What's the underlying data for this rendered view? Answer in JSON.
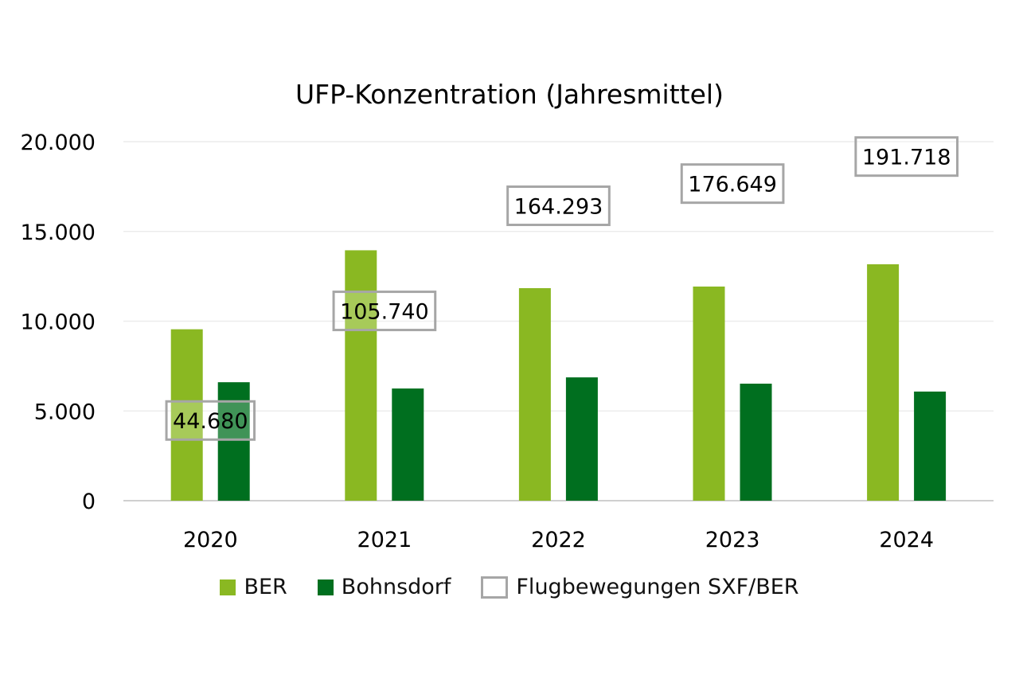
{
  "chart_data": {
    "type": "bar",
    "title": "UFP-Konzentration (Jahresmittel)",
    "categories": [
      "2020",
      "2021",
      "2022",
      "2023",
      "2024"
    ],
    "ylim": [
      0,
      20000
    ],
    "yticks": [
      "0",
      "5.000",
      "10.000",
      "15.000",
      "20.000"
    ],
    "ytick_values": [
      0,
      5000,
      10000,
      15000,
      20000
    ],
    "grid": true,
    "legend_position": "bottom",
    "series": [
      {
        "name": "BER",
        "color": "#8ab822",
        "values": [
          9550,
          13950,
          11840,
          11930,
          13170
        ]
      },
      {
        "name": "Bohnsdorf",
        "color": "#006f1f",
        "values": [
          6600,
          6250,
          6870,
          6520,
          6080
        ]
      }
    ],
    "secondary_series": {
      "name": "Flugbewegungen SXF/BER",
      "border_color": "#a6a6a6",
      "ylim": [
        0,
        200000
      ],
      "values": [
        44680,
        105740,
        164293,
        176649,
        191718
      ],
      "labels": [
        "44.680",
        "105.740",
        "164.293",
        "176.649",
        "191.718"
      ]
    }
  }
}
